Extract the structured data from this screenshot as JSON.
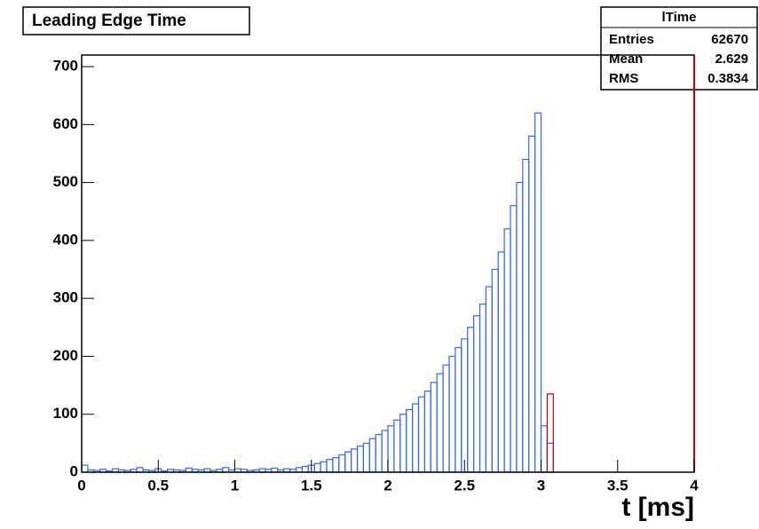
{
  "chart_data": {
    "type": "histogram",
    "title": "Leading Edge Time",
    "x_label": "t [ms]",
    "bins": [
      0,
      0.04,
      0.08,
      0.12,
      0.16,
      0.2,
      0.24,
      0.28,
      0.32,
      0.36,
      0.4,
      0.44,
      0.48,
      0.52,
      0.56,
      0.6,
      0.64,
      0.68,
      0.72,
      0.76,
      0.8,
      0.84,
      0.88,
      0.92,
      0.96,
      1,
      1.04,
      1.08,
      1.12,
      1.16,
      1.2,
      1.24,
      1.28,
      1.32,
      1.36,
      1.4,
      1.44,
      1.48,
      1.52,
      1.56,
      1.6,
      1.64,
      1.68,
      1.72,
      1.76,
      1.8,
      1.84,
      1.88,
      1.92,
      1.96,
      2,
      2.04,
      2.08,
      2.12,
      2.16,
      2.2,
      2.24,
      2.28,
      2.32,
      2.36,
      2.4,
      2.44,
      2.48,
      2.52,
      2.56,
      2.6,
      2.64,
      2.68,
      2.72,
      2.76,
      2.8,
      2.84,
      2.88,
      2.92,
      2.96,
      3,
      3.04,
      3.08,
      3.12,
      3.16,
      3.2,
      3.24,
      3.28,
      3.32,
      3.36,
      3.4,
      3.44,
      3.48,
      3.52,
      3.56,
      3.6,
      3.64,
      3.68,
      3.72,
      3.76,
      3.8,
      3.84,
      3.88,
      3.92,
      3.96,
      4
    ],
    "series": [
      {
        "color": "#3366ff",
        "values": [
          12,
          4,
          3,
          5,
          2,
          6,
          4,
          3,
          5,
          8,
          4,
          3,
          6,
          2,
          5,
          4,
          3,
          7,
          5,
          4,
          6,
          3,
          5,
          8,
          4,
          6,
          5,
          3,
          4,
          6,
          5,
          7,
          4,
          6,
          5,
          8,
          10,
          12,
          15,
          18,
          22,
          25,
          30,
          35,
          40,
          45,
          50,
          58,
          65,
          72,
          80,
          90,
          100,
          108,
          118,
          130,
          140,
          155,
          170,
          185,
          200,
          215,
          230,
          250,
          270,
          290,
          320,
          350,
          380,
          420,
          460,
          500,
          540,
          580,
          620,
          80,
          50,
          0,
          0,
          0,
          0,
          0,
          0,
          0,
          0,
          0,
          0,
          0,
          0,
          0,
          0,
          0,
          0,
          0,
          0,
          0,
          0,
          0,
          0,
          0
        ]
      },
      {
        "color": "#cc0000",
        "values": [
          0,
          0,
          0,
          0,
          0,
          0,
          0,
          0,
          0,
          0,
          0,
          0,
          0,
          0,
          0,
          0,
          0,
          0,
          0,
          0,
          0,
          0,
          0,
          0,
          0,
          0,
          0,
          0,
          0,
          0,
          0,
          0,
          0,
          0,
          0,
          0,
          0,
          0,
          0,
          0,
          0,
          0,
          0,
          0,
          0,
          0,
          0,
          0,
          0,
          0,
          0,
          0,
          0,
          0,
          0,
          0,
          0,
          0,
          0,
          0,
          0,
          0,
          0,
          0,
          0,
          0,
          0,
          0,
          0,
          0,
          0,
          0,
          0,
          0,
          0,
          0,
          135,
          0,
          0,
          0,
          0,
          0,
          0,
          0,
          0,
          0,
          0,
          0,
          0,
          0,
          0,
          0,
          0,
          0,
          0,
          0,
          0,
          0,
          0,
          0
        ]
      }
    ],
    "xlim": [
      0,
      4
    ],
    "xticks": [
      0,
      0.5,
      1,
      1.5,
      2,
      2.5,
      3,
      3.5,
      4
    ],
    "ylim": [
      0,
      720
    ],
    "yticks": [
      0,
      100,
      200,
      300,
      400,
      500,
      600,
      700
    ],
    "stats": {
      "title": "lTime",
      "rows": [
        {
          "label": "Entries",
          "value": 62670
        },
        {
          "label": "Mean",
          "value": 2.629
        },
        {
          "label": "RMS",
          "value": 0.3834
        }
      ]
    }
  }
}
